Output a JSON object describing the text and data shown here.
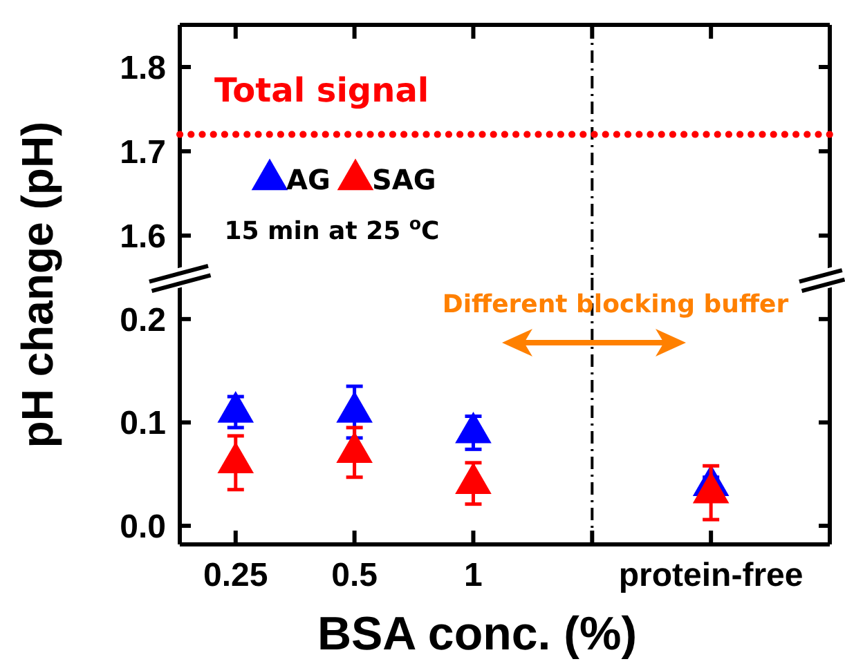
{
  "chart_data": [
    {
      "type": "line",
      "categories": [
        null,
        null,
        null,
        null,
        null,
        null,
        null
      ],
      "ylim": [
        1.55,
        1.85
      ],
      "yticks": [
        1.6,
        1.7,
        1.8
      ],
      "tick_labels": "y",
      "ylabel": "pH change (pH)",
      "ref_lines": [
        {
          "axis": "x",
          "color": "#000000",
          "line_style": "dashdot"
        }
      ],
      "series": [
        {
          "name": "Total signal",
          "color": "#ff0000",
          "line_style": "dotted",
          "values": [
            1.72,
            1.72,
            1.72,
            1.72,
            1.72,
            1.72,
            1.72
          ]
        }
      ],
      "annotations": [
        "15 min at 25 $^{o}$C"
      ]
    },
    {
      "type": "scatter",
      "categories": [
        "0.25",
        "0.5",
        "1",
        null,
        "protein-free"
      ],
      "xlabel": "BSA conc. (%)",
      "ylim": [
        -0.018,
        0.24
      ],
      "yticks": [
        {
          "value": 0,
          "label": "0.0"
        },
        {
          "value": 0.1,
          "label": "0.1"
        },
        {
          "value": 0.2,
          "label": "0.2"
        }
      ],
      "marker": "triangle",
      "legend": "top left",
      "ref_lines": [
        {
          "axis": "x",
          "color": "#000000",
          "line_style": "dashdot"
        }
      ],
      "annotations": [
        "Different blocking buffer"
      ],
      "series": [
        {
          "name": "AG",
          "color": "#0000ff",
          "values": [
            0.11,
            0.11,
            0.09,
            null,
            0.039
          ],
          "errors": [
            0.015,
            0.025,
            0.016,
            null,
            0.008
          ]
        },
        {
          "name": "SAG",
          "color": "#ff0000",
          "values": [
            0.061,
            0.071,
            0.041,
            null,
            0.032
          ],
          "errors": [
            0.026,
            0.024,
            0.02,
            null,
            0.026
          ]
        }
      ]
    }
  ]
}
